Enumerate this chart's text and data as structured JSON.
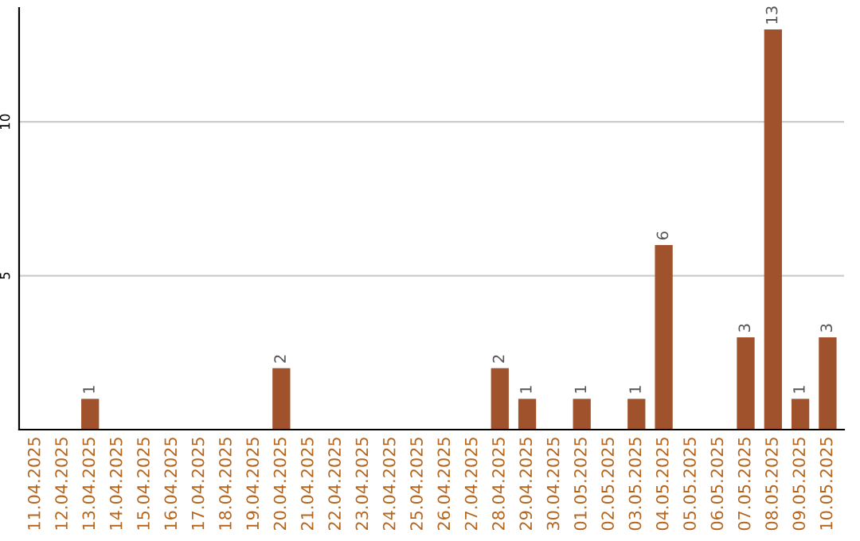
{
  "chart_data": {
    "type": "bar",
    "categories": [
      "11.04.2025",
      "12.04.2025",
      "13.04.2025",
      "14.04.2025",
      "15.04.2025",
      "16.04.2025",
      "17.04.2025",
      "18.04.2025",
      "19.04.2025",
      "20.04.2025",
      "21.04.2025",
      "22.04.2025",
      "23.04.2025",
      "24.04.2025",
      "25.04.2025",
      "26.04.2025",
      "27.04.2025",
      "28.04.2025",
      "29.04.2025",
      "30.04.2025",
      "01.05.2025",
      "02.05.2025",
      "03.05.2025",
      "04.05.2025",
      "05.05.2025",
      "06.05.2025",
      "07.05.2025",
      "08.05.2025",
      "09.05.2025",
      "10.05.2025"
    ],
    "values": [
      0,
      0,
      1,
      0,
      0,
      0,
      0,
      0,
      0,
      2,
      0,
      0,
      0,
      0,
      0,
      0,
      0,
      2,
      1,
      0,
      1,
      0,
      1,
      6,
      0,
      0,
      3,
      13,
      1,
      3
    ],
    "value_labels": [
      null,
      null,
      "1",
      null,
      null,
      null,
      null,
      null,
      null,
      "2",
      null,
      null,
      null,
      null,
      null,
      null,
      null,
      "2",
      "1",
      null,
      "1",
      null,
      "1",
      "6",
      null,
      null,
      "3",
      "13",
      "1",
      "3"
    ],
    "color": "#a0522d",
    "ylim": [
      0,
      13.7
    ],
    "yticks": [
      5,
      10
    ],
    "grid": "y"
  }
}
